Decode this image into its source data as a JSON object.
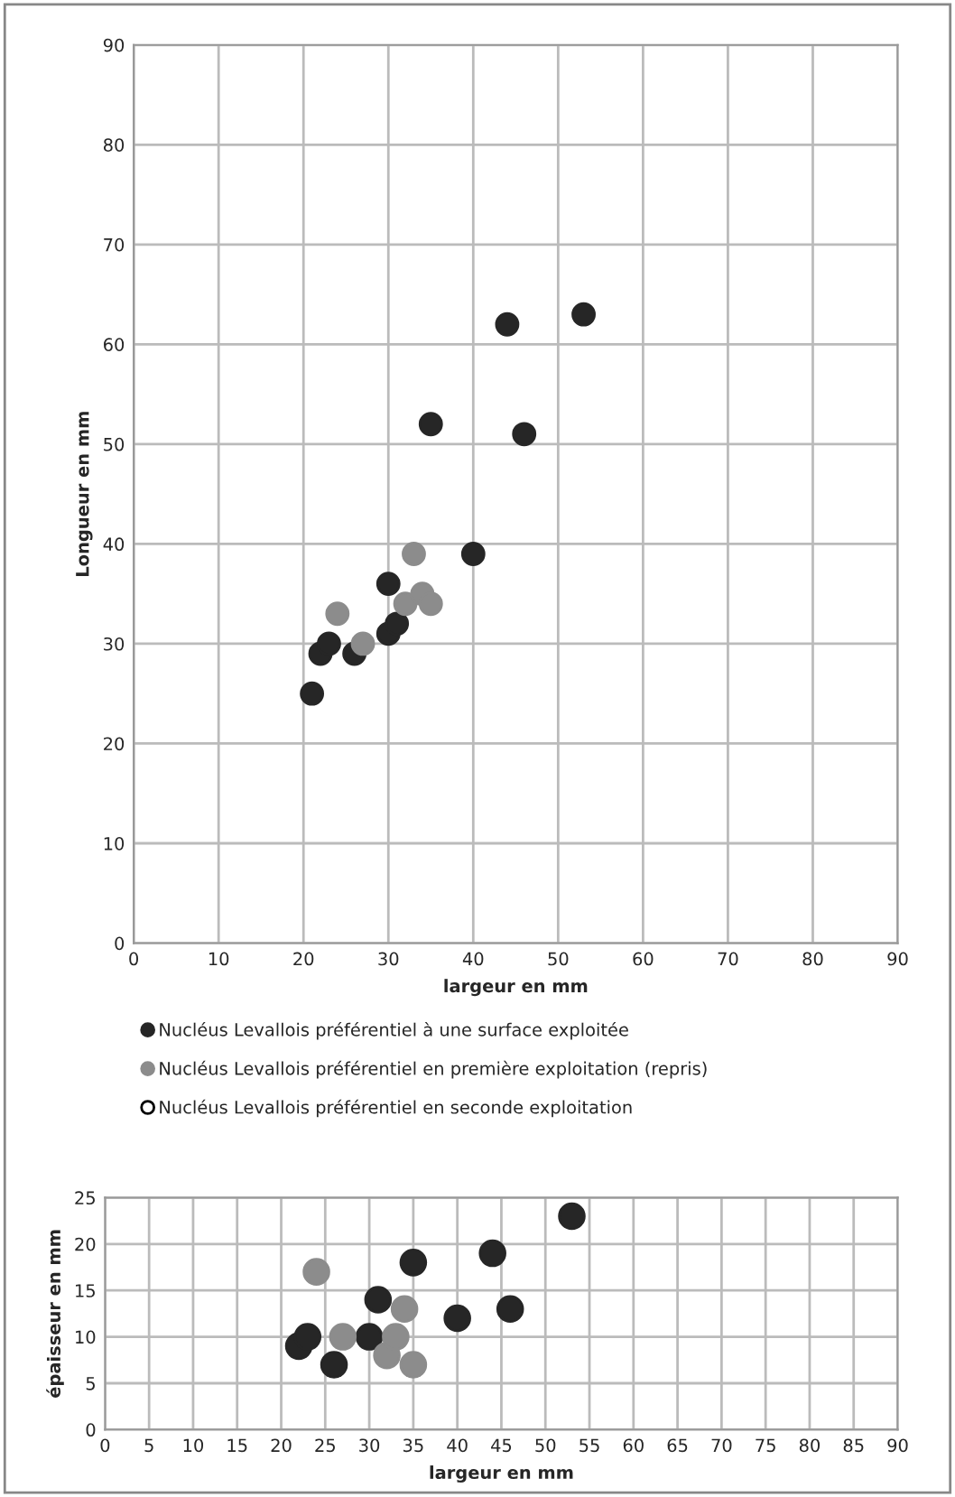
{
  "chart_data": [
    {
      "type": "scatter",
      "xlabel": "largeur en mm",
      "ylabel": "Longueur en mm",
      "xlim": [
        0,
        90
      ],
      "ylim": [
        0,
        90
      ],
      "xticks": [
        0,
        10,
        20,
        30,
        40,
        50,
        60,
        70,
        80,
        90
      ],
      "yticks": [
        0,
        10,
        20,
        30,
        40,
        50,
        60,
        70,
        80,
        90
      ],
      "grid": true,
      "marker": "circle",
      "legend": "bottom",
      "series": [
        {
          "name": "Nucléus Levallois préférentiel à une surface exploitée",
          "color": "#262626",
          "x": [
            21,
            22,
            23,
            26,
            30,
            31,
            30,
            35,
            40,
            44,
            46,
            53
          ],
          "values": [
            25,
            29,
            30,
            29,
            31,
            32,
            36,
            52,
            39,
            62,
            51,
            63
          ]
        },
        {
          "name": "Nucléus Levallois préférentiel en première exploitation (repris)",
          "color": "#8c8c8c",
          "x": [
            24,
            27,
            32,
            33,
            34,
            35
          ],
          "values": [
            33,
            30,
            34,
            39,
            35,
            34
          ]
        },
        {
          "name": "Nucléus Levallois préférentiel en seconde exploitation",
          "color": "#ffffff"
        }
      ]
    },
    {
      "type": "scatter",
      "xlabel": "largeur en mm",
      "ylabel": "épaisseur en mm",
      "xlim": [
        0,
        90
      ],
      "ylim": [
        0,
        25
      ],
      "xticks": [
        0,
        5,
        10,
        15,
        20,
        25,
        30,
        35,
        40,
        45,
        50,
        55,
        60,
        65,
        70,
        75,
        80,
        85,
        90
      ],
      "yticks": [
        0,
        5,
        10,
        15,
        20,
        25
      ],
      "grid": true,
      "marker": "circle",
      "series": [
        {
          "color": "#262626",
          "x": [
            22,
            23,
            26,
            30,
            31,
            35,
            40,
            44,
            46,
            53
          ],
          "values": [
            9,
            10,
            7,
            10,
            14,
            18,
            12,
            19,
            13,
            23
          ]
        },
        {
          "color": "#8c8c8c",
          "x": [
            24,
            27,
            32,
            33,
            34,
            35
          ],
          "values": [
            17,
            10,
            8,
            10,
            13,
            7
          ]
        }
      ]
    }
  ]
}
